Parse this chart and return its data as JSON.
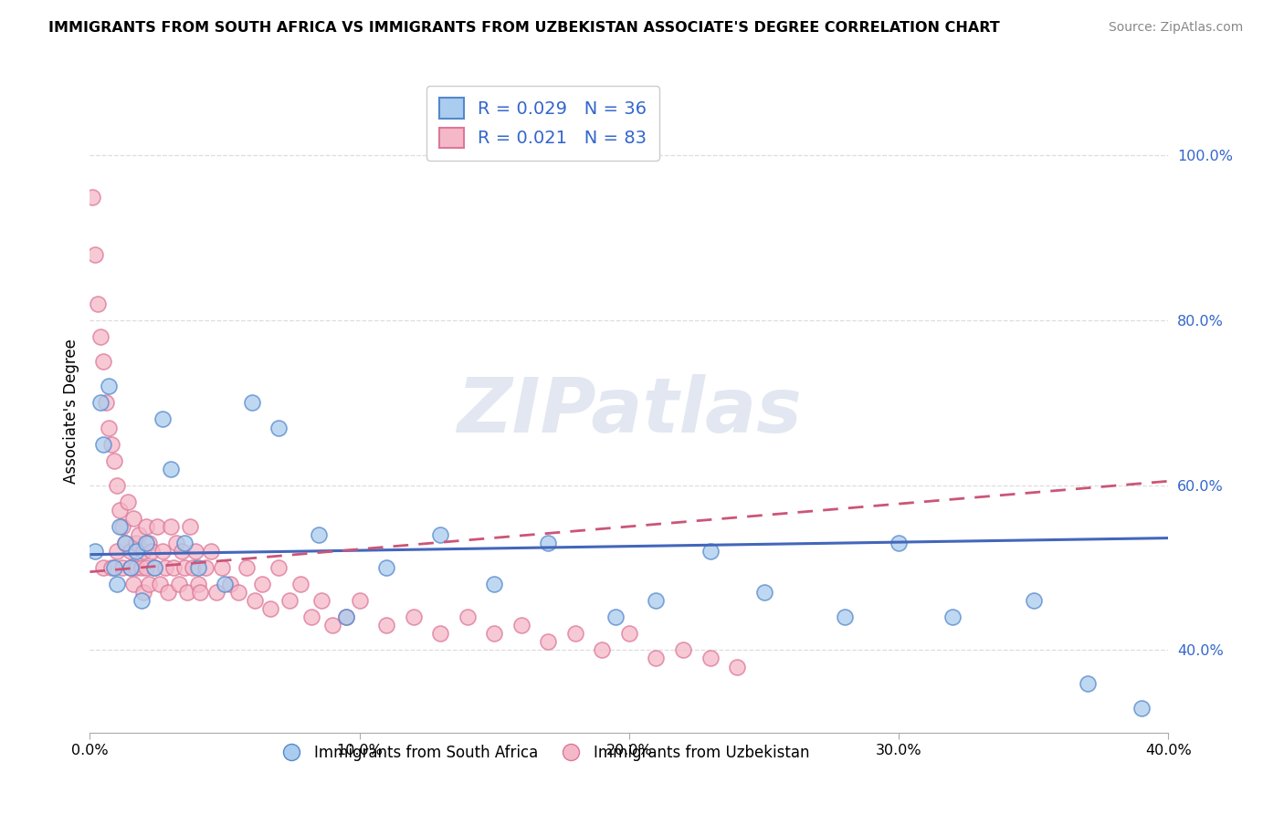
{
  "title": "IMMIGRANTS FROM SOUTH AFRICA VS IMMIGRANTS FROM UZBEKISTAN ASSOCIATE'S DEGREE CORRELATION CHART",
  "source": "Source: ZipAtlas.com",
  "ylabel": "Associate's Degree",
  "label_sa": "Immigrants from South Africa",
  "label_uz": "Immigrants from Uzbekistan",
  "legend_r1": "R = 0.029",
  "legend_n1": "N = 36",
  "legend_r2": "R = 0.021",
  "legend_n2": "N = 83",
  "blue_color": "#aaccee",
  "blue_edge": "#5588cc",
  "pink_color": "#f5b8c8",
  "pink_edge": "#dd7799",
  "blue_line": "#4466bb",
  "pink_line": "#cc5577",
  "watermark": "ZIPatlas",
  "x_lim": [
    0.0,
    0.4
  ],
  "y_lim": [
    0.3,
    1.08
  ],
  "y_ticks": [
    0.4,
    0.6,
    0.8,
    1.0
  ],
  "x_ticks": [
    0.0,
    0.1,
    0.2,
    0.3,
    0.4
  ],
  "blue_x": [
    0.002,
    0.004,
    0.005,
    0.007,
    0.009,
    0.01,
    0.011,
    0.013,
    0.015,
    0.017,
    0.019,
    0.021,
    0.024,
    0.027,
    0.03,
    0.035,
    0.04,
    0.05,
    0.06,
    0.07,
    0.085,
    0.095,
    0.11,
    0.13,
    0.15,
    0.17,
    0.195,
    0.21,
    0.23,
    0.25,
    0.28,
    0.3,
    0.32,
    0.35,
    0.37,
    0.39
  ],
  "blue_y": [
    0.52,
    0.7,
    0.65,
    0.72,
    0.5,
    0.48,
    0.55,
    0.53,
    0.5,
    0.52,
    0.46,
    0.53,
    0.5,
    0.68,
    0.62,
    0.53,
    0.5,
    0.48,
    0.7,
    0.67,
    0.54,
    0.44,
    0.5,
    0.54,
    0.48,
    0.53,
    0.44,
    0.46,
    0.52,
    0.47,
    0.44,
    0.53,
    0.44,
    0.46,
    0.36,
    0.33
  ],
  "pink_x": [
    0.001,
    0.002,
    0.003,
    0.004,
    0.005,
    0.005,
    0.006,
    0.007,
    0.008,
    0.008,
    0.009,
    0.01,
    0.01,
    0.011,
    0.012,
    0.012,
    0.013,
    0.014,
    0.015,
    0.015,
    0.016,
    0.016,
    0.017,
    0.017,
    0.018,
    0.019,
    0.02,
    0.02,
    0.021,
    0.021,
    0.022,
    0.022,
    0.023,
    0.024,
    0.025,
    0.026,
    0.027,
    0.028,
    0.029,
    0.03,
    0.031,
    0.032,
    0.033,
    0.034,
    0.035,
    0.036,
    0.037,
    0.038,
    0.039,
    0.04,
    0.041,
    0.043,
    0.045,
    0.047,
    0.049,
    0.052,
    0.055,
    0.058,
    0.061,
    0.064,
    0.067,
    0.07,
    0.074,
    0.078,
    0.082,
    0.086,
    0.09,
    0.095,
    0.1,
    0.11,
    0.12,
    0.13,
    0.14,
    0.15,
    0.16,
    0.17,
    0.18,
    0.19,
    0.2,
    0.21,
    0.22,
    0.23,
    0.24
  ],
  "pink_y": [
    0.95,
    0.88,
    0.82,
    0.78,
    0.75,
    0.5,
    0.7,
    0.67,
    0.65,
    0.5,
    0.63,
    0.6,
    0.52,
    0.57,
    0.55,
    0.5,
    0.53,
    0.58,
    0.52,
    0.5,
    0.56,
    0.48,
    0.53,
    0.5,
    0.54,
    0.5,
    0.52,
    0.47,
    0.55,
    0.5,
    0.53,
    0.48,
    0.52,
    0.5,
    0.55,
    0.48,
    0.52,
    0.5,
    0.47,
    0.55,
    0.5,
    0.53,
    0.48,
    0.52,
    0.5,
    0.47,
    0.55,
    0.5,
    0.52,
    0.48,
    0.47,
    0.5,
    0.52,
    0.47,
    0.5,
    0.48,
    0.47,
    0.5,
    0.46,
    0.48,
    0.45,
    0.5,
    0.46,
    0.48,
    0.44,
    0.46,
    0.43,
    0.44,
    0.46,
    0.43,
    0.44,
    0.42,
    0.44,
    0.42,
    0.43,
    0.41,
    0.42,
    0.4,
    0.42,
    0.39,
    0.4,
    0.39,
    0.38
  ],
  "blue_trend_x": [
    0.0,
    0.4
  ],
  "blue_trend_y": [
    0.516,
    0.536
  ],
  "pink_trend_x": [
    0.0,
    0.4
  ],
  "pink_trend_y": [
    0.495,
    0.605
  ]
}
